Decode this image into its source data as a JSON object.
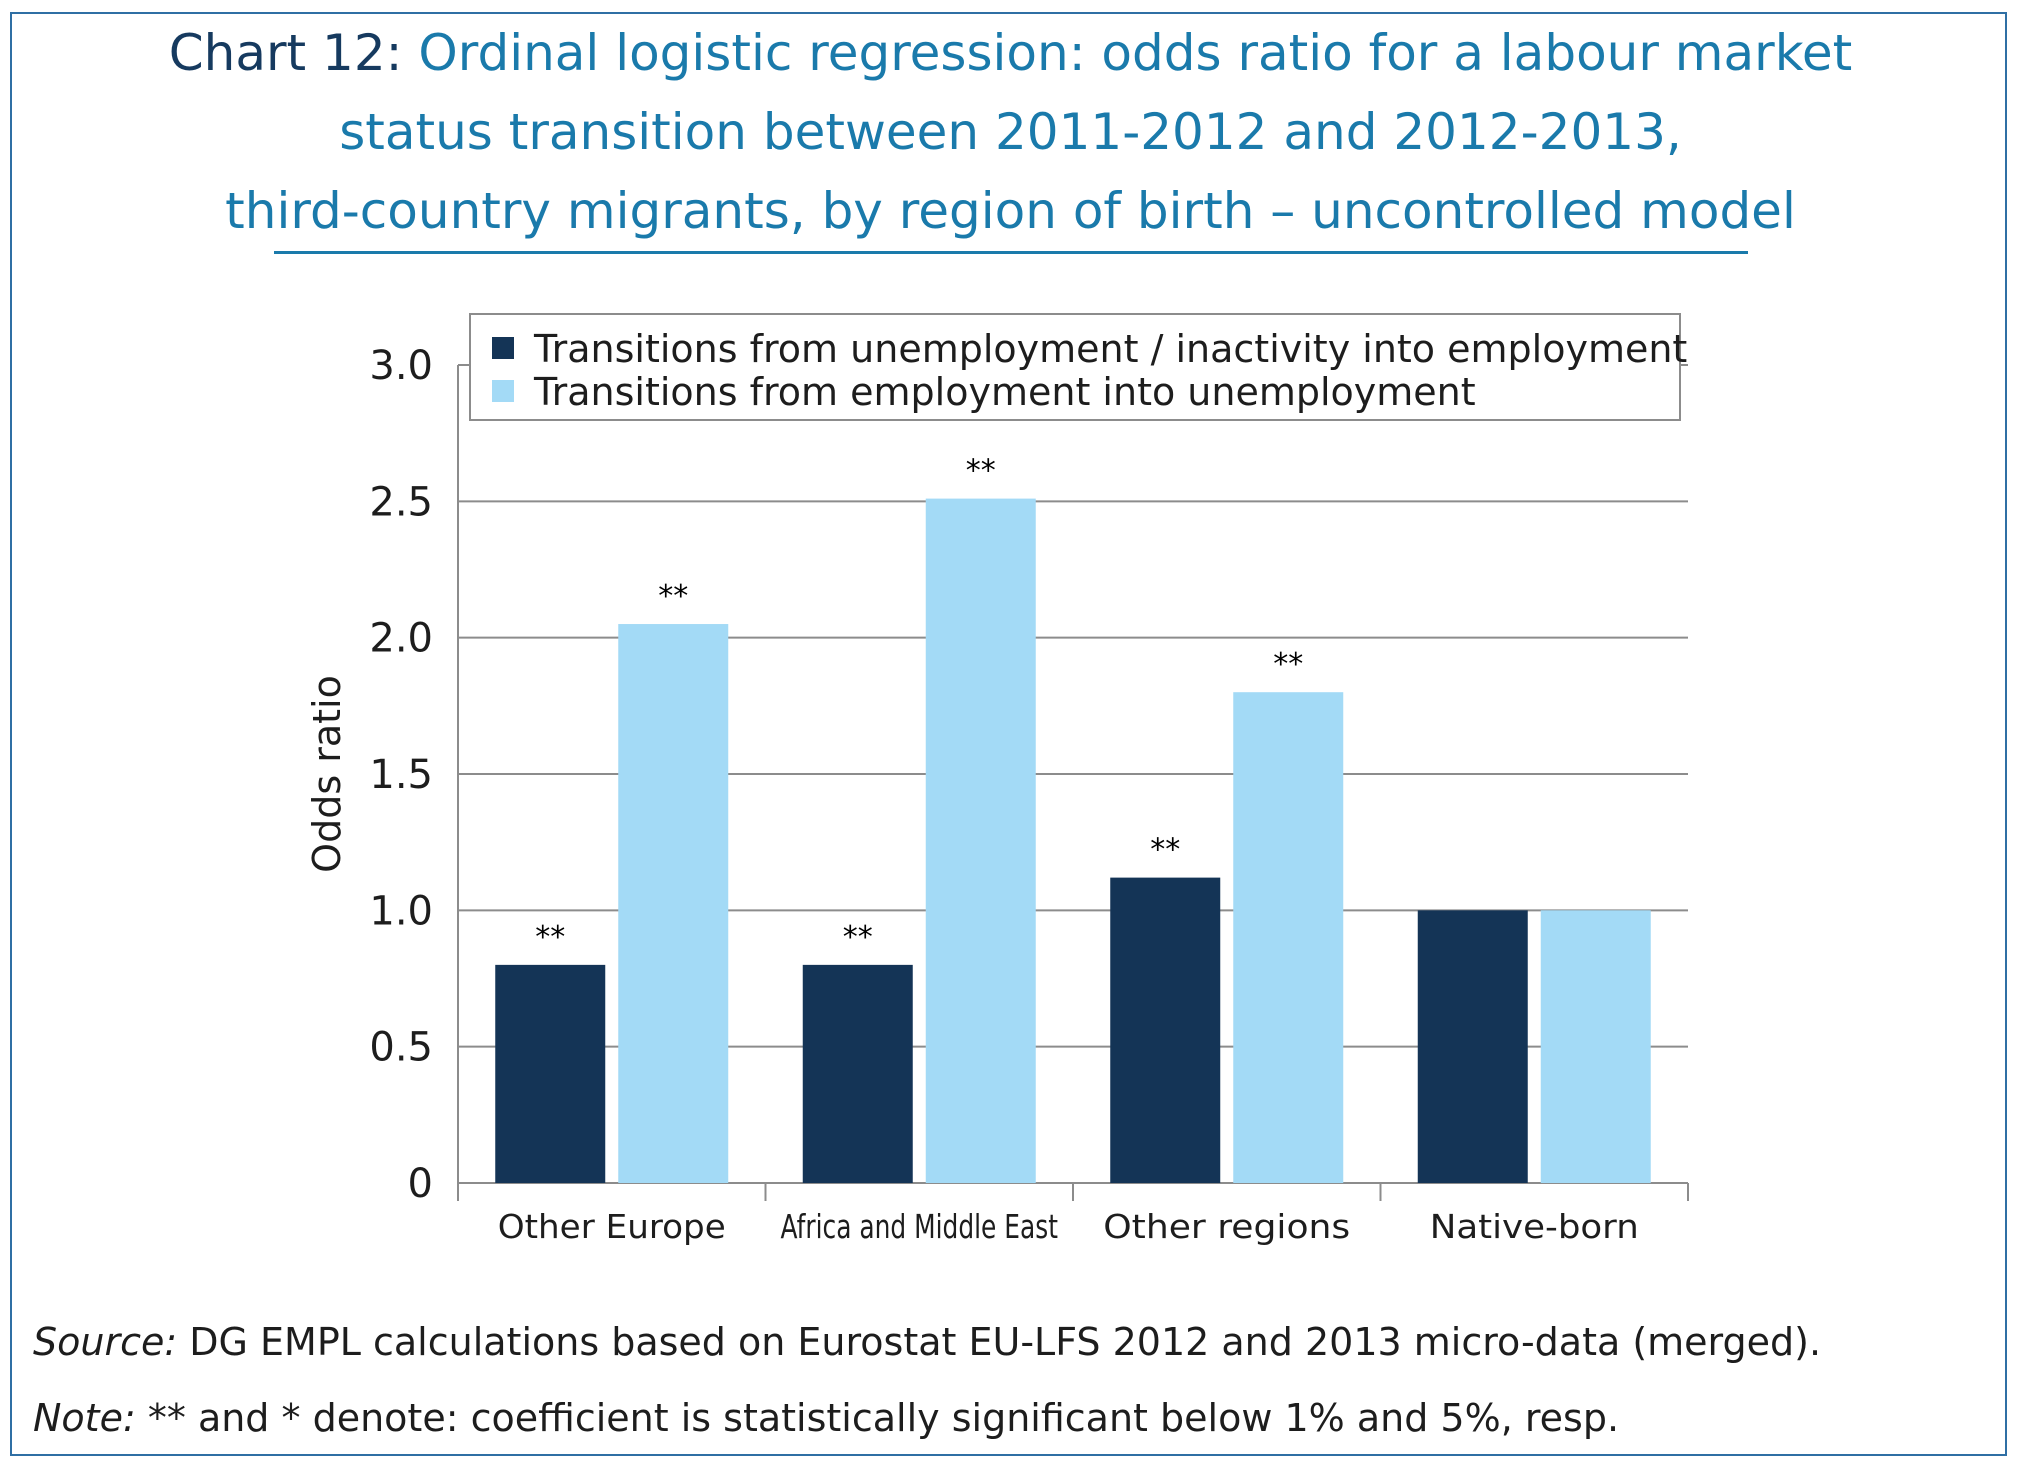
{
  "title": {
    "prefix": "Chart 12:",
    "lines": [
      "Ordinal logistic regression: odds ratio for a labour market",
      "status transition between 2011-2012 and 2012-2013,",
      "third-country migrants, by region of birth – uncontrolled model"
    ]
  },
  "footer": {
    "source_label": "Source:",
    "source_text": "DG EMPL calculations based on Eurostat EU-LFS 2012 and 2013 micro-data (merged).",
    "note_label": "Note:",
    "note_text": "** and * denote: coefficient is statistically significant below 1% and 5%, resp."
  },
  "chart_data": {
    "type": "bar",
    "categories": [
      "Other Europe",
      "Africa and Middle East",
      "Other regions",
      "Native-born"
    ],
    "series": [
      {
        "name": "Transitions from unemployment / inactivity into employment",
        "color": "#143456",
        "values": [
          0.8,
          0.8,
          1.12,
          1.0
        ],
        "labels": [
          "**",
          "**",
          "**",
          ""
        ]
      },
      {
        "name": "Transitions from employment into unemployment",
        "color": "#a3daf6",
        "values": [
          2.05,
          2.51,
          1.8,
          1.0
        ],
        "labels": [
          "**",
          "**",
          "**",
          ""
        ]
      }
    ],
    "ylabel": "Odds ratio",
    "xlabel": "",
    "ylim": [
      0,
      3.0
    ],
    "yticks": [
      0,
      0.5,
      1.0,
      1.5,
      2.0,
      2.5,
      3.0
    ],
    "ytick_labels": [
      "0",
      "0.5",
      "1.0",
      "1.5",
      "2.0",
      "2.5",
      "3.0"
    ],
    "grid": true,
    "legend_position": "top"
  }
}
